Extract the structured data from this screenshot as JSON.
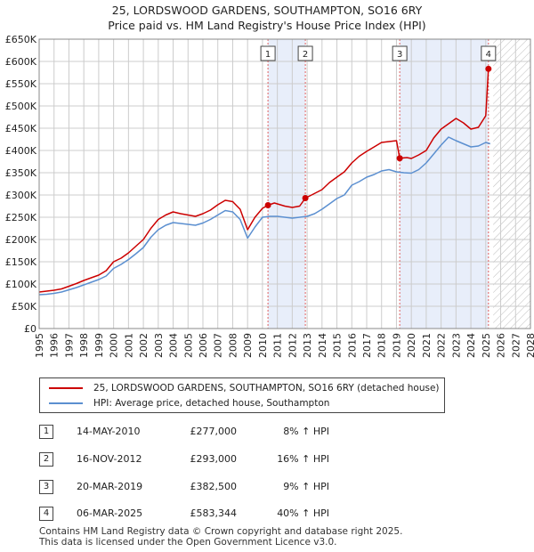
{
  "title_line1": "25, LORDSWOOD GARDENS, SOUTHAMPTON, SO16 6RY",
  "title_line2": "Price paid vs. HM Land Registry's House Price Index (HPI)",
  "colors": {
    "property": "#cc0000",
    "hpi": "#5b8fd0",
    "shade": "#e8eefa",
    "vline": "#e06060",
    "grid": "#cccccc"
  },
  "chart_data": {
    "type": "line",
    "xlabel": "",
    "ylabel": "",
    "xlim": [
      1995,
      2028
    ],
    "ylim": [
      0,
      650000
    ],
    "x_ticks": [
      1995,
      1996,
      1997,
      1998,
      1999,
      2000,
      2001,
      2002,
      2003,
      2004,
      2005,
      2006,
      2007,
      2008,
      2009,
      2010,
      2011,
      2012,
      2013,
      2014,
      2015,
      2016,
      2017,
      2018,
      2019,
      2020,
      2021,
      2022,
      2023,
      2024,
      2025,
      2026,
      2027,
      2028
    ],
    "y_ticks": [
      0,
      50000,
      100000,
      150000,
      200000,
      250000,
      300000,
      350000,
      400000,
      450000,
      500000,
      550000,
      600000,
      650000
    ],
    "y_tick_labels": [
      "£0",
      "£50K",
      "£100K",
      "£150K",
      "£200K",
      "£250K",
      "£300K",
      "£350K",
      "£400K",
      "£450K",
      "£500K",
      "£550K",
      "£600K",
      "£650K"
    ],
    "shaded_periods": [
      [
        2010.37,
        2012.88
      ],
      [
        2019.22,
        2025.18
      ]
    ],
    "hatched_from": 2025.5,
    "series": [
      {
        "name": "25, LORDSWOOD GARDENS, SOUTHAMPTON, SO16 6RY (detached house)",
        "x": [
          1995,
          1995.5,
          1996,
          1996.5,
          1997,
          1997.5,
          1998,
          1998.5,
          1999,
          1999.5,
          2000,
          2000.5,
          2001,
          2001.5,
          2002,
          2002.5,
          2003,
          2003.5,
          2004,
          2004.5,
          2005,
          2005.5,
          2006,
          2006.5,
          2007,
          2007.5,
          2008,
          2008.5,
          2009,
          2009.5,
          2010,
          2010.37,
          2010.8,
          2011.5,
          2012,
          2012.5,
          2012.88,
          2013.3,
          2014,
          2014.5,
          2015,
          2015.5,
          2016,
          2016.5,
          2017,
          2017.5,
          2018,
          2018.5,
          2019,
          2019.22,
          2019.7,
          2020,
          2020.5,
          2021,
          2021.5,
          2022,
          2022.5,
          2023,
          2023.5,
          2024,
          2024.5,
          2025,
          2025.18,
          2025.3
        ],
        "values": [
          82000,
          84000,
          86000,
          89000,
          95000,
          101000,
          108000,
          114000,
          120000,
          130000,
          150000,
          158000,
          170000,
          185000,
          200000,
          225000,
          245000,
          255000,
          262000,
          258000,
          255000,
          252000,
          258000,
          266000,
          278000,
          288000,
          285000,
          268000,
          222000,
          250000,
          270000,
          277000,
          282000,
          275000,
          272000,
          275000,
          293000,
          300000,
          312000,
          328000,
          340000,
          352000,
          372000,
          387000,
          398000,
          408000,
          418000,
          420000,
          422000,
          382500,
          384000,
          382000,
          390000,
          400000,
          428000,
          448000,
          460000,
          472000,
          462000,
          448000,
          452000,
          478000,
          583344,
          585000
        ]
      },
      {
        "name": "HPI: Average price, detached house, Southampton",
        "x": [
          1995,
          1995.5,
          1996,
          1996.5,
          1997,
          1997.5,
          1998,
          1998.5,
          1999,
          1999.5,
          2000,
          2000.5,
          2001,
          2001.5,
          2002,
          2002.5,
          2003,
          2003.5,
          2004,
          2004.5,
          2005,
          2005.5,
          2006,
          2006.5,
          2007,
          2007.5,
          2008,
          2008.5,
          2009,
          2009.5,
          2010,
          2010.5,
          2011,
          2011.5,
          2012,
          2012.5,
          2013,
          2013.5,
          2014,
          2014.5,
          2015,
          2015.5,
          2016,
          2016.5,
          2017,
          2017.5,
          2018,
          2018.5,
          2019,
          2019.5,
          2020,
          2020.5,
          2021,
          2021.5,
          2022,
          2022.5,
          2023,
          2023.5,
          2024,
          2024.5,
          2025,
          2025.3
        ],
        "values": [
          76000,
          77000,
          79000,
          82000,
          87000,
          92000,
          98000,
          104000,
          110000,
          118000,
          135000,
          144000,
          155000,
          168000,
          182000,
          205000,
          222000,
          232000,
          238000,
          236000,
          234000,
          232000,
          237000,
          245000,
          255000,
          265000,
          262000,
          245000,
          203000,
          228000,
          250000,
          252000,
          252000,
          250000,
          248000,
          250000,
          252000,
          258000,
          268000,
          280000,
          292000,
          300000,
          322000,
          330000,
          340000,
          346000,
          354000,
          357000,
          352000,
          350000,
          349000,
          357000,
          372000,
          392000,
          412000,
          430000,
          422000,
          415000,
          408000,
          410000,
          418000,
          415000
        ]
      }
    ],
    "sales": [
      {
        "label": "1",
        "x": 2010.37,
        "value": 277000
      },
      {
        "label": "2",
        "x": 2012.88,
        "value": 293000
      },
      {
        "label": "3",
        "x": 2019.22,
        "value": 382500
      },
      {
        "label": "4",
        "x": 2025.18,
        "value": 583344
      }
    ]
  },
  "legend": {
    "property": "25, LORDSWOOD GARDENS, SOUTHAMPTON, SO16 6RY (detached house)",
    "hpi": "HPI: Average price, detached house, Southampton"
  },
  "transactions": [
    {
      "num": "1",
      "date": "14-MAY-2010",
      "price": "£277,000",
      "hpi": "8% ↑ HPI"
    },
    {
      "num": "2",
      "date": "16-NOV-2012",
      "price": "£293,000",
      "hpi": "16% ↑ HPI"
    },
    {
      "num": "3",
      "date": "20-MAR-2019",
      "price": "£382,500",
      "hpi": "9% ↑ HPI"
    },
    {
      "num": "4",
      "date": "06-MAR-2025",
      "price": "£583,344",
      "hpi": "40% ↑ HPI"
    }
  ],
  "footer_line1": "Contains HM Land Registry data © Crown copyright and database right 2025.",
  "footer_line2": "This data is licensed under the Open Government Licence v3.0."
}
